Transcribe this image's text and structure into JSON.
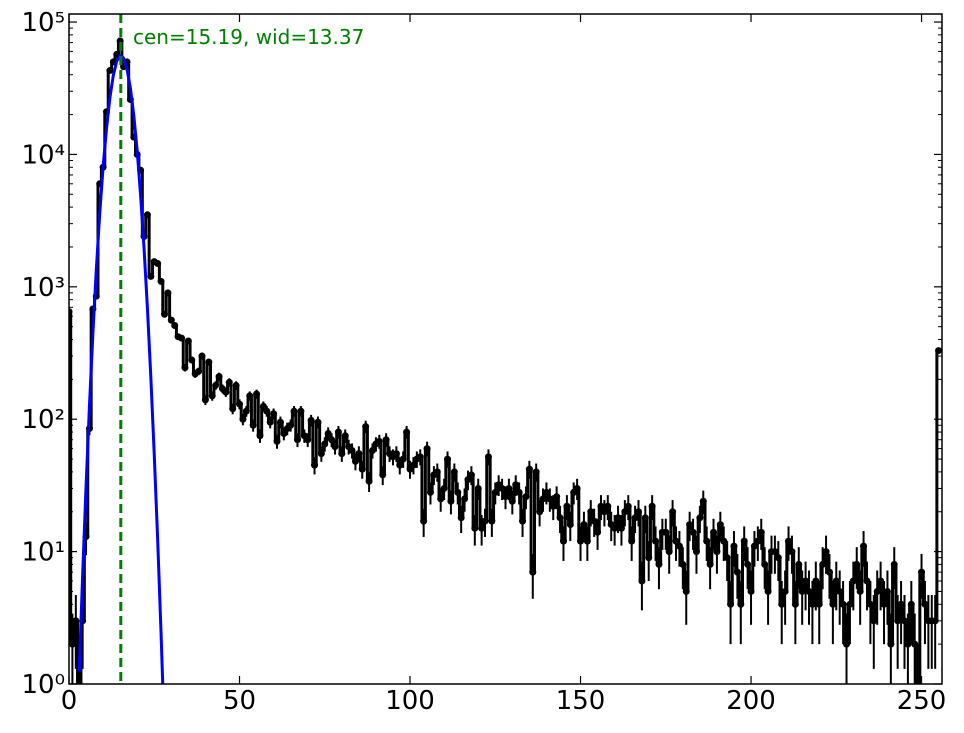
{
  "chart_data": {
    "type": "errorbar-step",
    "annotation": "cen=15.19, wid=13.37",
    "vline": {
      "x": 15.19,
      "color": "#008000"
    },
    "log_y": true,
    "xlim": [
      0,
      256
    ],
    "ylim": [
      1,
      115000
    ],
    "xticks": [
      0,
      50,
      100,
      150,
      200,
      250
    ],
    "yticks": [
      {
        "value": 1,
        "label": "10⁰"
      },
      {
        "value": 10,
        "label": "10¹"
      },
      {
        "value": 100,
        "label": "10²"
      },
      {
        "value": 1000,
        "label": "10³"
      },
      {
        "value": 10000,
        "label": "10⁴"
      },
      {
        "value": 100000,
        "label": "10⁵"
      }
    ],
    "yminorticks": [
      2,
      3,
      4,
      5,
      6,
      7,
      8,
      9,
      20,
      30,
      40,
      50,
      60,
      70,
      80,
      90,
      200,
      300,
      400,
      500,
      600,
      700,
      800,
      900,
      2000,
      3000,
      4000,
      5000,
      6000,
      7000,
      8000,
      9000,
      20000,
      30000,
      40000,
      50000,
      60000,
      70000,
      80000,
      90000
    ],
    "series": [
      {
        "color": "#000000",
        "x": [
          0,
          1,
          2,
          3,
          4,
          5,
          6,
          7,
          8,
          9,
          10,
          11,
          12,
          13,
          14,
          15,
          16,
          17,
          18,
          19,
          20,
          21,
          22,
          23,
          24,
          25,
          26,
          27,
          28,
          29,
          30,
          31,
          32,
          33,
          34,
          35,
          36,
          37,
          38,
          39,
          40,
          41,
          42,
          43,
          44,
          45,
          46,
          47,
          48,
          49,
          50,
          51,
          52,
          53,
          54,
          55,
          56,
          57,
          58,
          59,
          60,
          61,
          62,
          63,
          64,
          65,
          66,
          67,
          68,
          69,
          70,
          71,
          72,
          73,
          74,
          75,
          76,
          77,
          78,
          79,
          80,
          81,
          82,
          83,
          84,
          85,
          86,
          87,
          88,
          89,
          90,
          91,
          92,
          93,
          94,
          95,
          96,
          97,
          98,
          99,
          100,
          101,
          102,
          103,
          104,
          105,
          106,
          107,
          108,
          109,
          110,
          111,
          112,
          113,
          114,
          115,
          116,
          117,
          118,
          119,
          120,
          121,
          122,
          123,
          124,
          125,
          126,
          127,
          128,
          129,
          130,
          131,
          132,
          133,
          134,
          135,
          136,
          137,
          138,
          139,
          140,
          141,
          142,
          143,
          144,
          145,
          146,
          147,
          148,
          149,
          150,
          151,
          152,
          153,
          154,
          155,
          156,
          157,
          158,
          159,
          160,
          161,
          162,
          163,
          164,
          165,
          166,
          167,
          168,
          169,
          170,
          171,
          172,
          173,
          174,
          175,
          176,
          177,
          178,
          179,
          180,
          181,
          182,
          183,
          184,
          185,
          186,
          187,
          188,
          189,
          190,
          191,
          192,
          193,
          194,
          195,
          196,
          197,
          198,
          199,
          200,
          201,
          202,
          203,
          204,
          205,
          206,
          207,
          208,
          209,
          210,
          211,
          212,
          213,
          214,
          215,
          216,
          217,
          218,
          219,
          220,
          221,
          222,
          223,
          224,
          225,
          226,
          227,
          228,
          229,
          230,
          231,
          232,
          233,
          234,
          235,
          236,
          237,
          238,
          239,
          240,
          241,
          242,
          243,
          244,
          245,
          246,
          247,
          248,
          249,
          250,
          251,
          252,
          253,
          254,
          255
        ],
        "values": [
          650,
          2,
          3,
          1,
          3,
          13,
          85,
          680,
          850,
          6000,
          8000,
          21000,
          43000,
          50000,
          57000,
          72000,
          46000,
          50000,
          26000,
          13500,
          10000,
          7600,
          2400,
          3500,
          1200,
          1550,
          1500,
          1100,
          620,
          900,
          560,
          510,
          420,
          410,
          245,
          390,
          280,
          220,
          230,
          300,
          140,
          270,
          150,
          180,
          210,
          170,
          160,
          190,
          120,
          180,
          130,
          100,
          115,
          150,
          90,
          155,
          75,
          125,
          115,
          95,
          110,
          68,
          95,
          78,
          85,
          90,
          115,
          70,
          115,
          75,
          70,
          98,
          45,
          95,
          55,
          65,
          78,
          70,
          62,
          80,
          55,
          75,
          62,
          58,
          48,
          55,
          42,
          88,
          34,
          58,
          65,
          68,
          38,
          70,
          55,
          52,
          55,
          45,
          50,
          80,
          42,
          45,
          50,
          52,
          17,
          60,
          28,
          38,
          40,
          25,
          30,
          50,
          24,
          40,
          28,
          18,
          25,
          35,
          38,
          15,
          30,
          15,
          17,
          52,
          17,
          28,
          32,
          30,
          26,
          30,
          24,
          32,
          28,
          17,
          26,
          42,
          7,
          40,
          20,
          25,
          28,
          25,
          22,
          26,
          18,
          12,
          22,
          16,
          28,
          30,
          12,
          16,
          12,
          20,
          17,
          14,
          22,
          20,
          22,
          16,
          15,
          18,
          15,
          20,
          22,
          12,
          18,
          20,
          6,
          18,
          9,
          22,
          12,
          8,
          14,
          14,
          10,
          20,
          12,
          11,
          8,
          5,
          16,
          14,
          10,
          18,
          24,
          12,
          8,
          14,
          10,
          16,
          12,
          9,
          4,
          11,
          7,
          4,
          12,
          8,
          5,
          11,
          12,
          14,
          8,
          5,
          10,
          10,
          9,
          4,
          5,
          12,
          10,
          4,
          8,
          5,
          6,
          5,
          4,
          6,
          4,
          8,
          10,
          7,
          4,
          6,
          5,
          4,
          2,
          4,
          6,
          8,
          5,
          11,
          6,
          4,
          3,
          5,
          6,
          4,
          5,
          2,
          8,
          3,
          4,
          3,
          2,
          4,
          2,
          1,
          7,
          4,
          3,
          3,
          3,
          330
        ],
        "errors": [
          25.5,
          1.4,
          1.7,
          1,
          1.7,
          3.6,
          9.2,
          26.1,
          29.2,
          77.5,
          89.4,
          145,
          207,
          224,
          239,
          268,
          214,
          224,
          161,
          116,
          100,
          87.2,
          49,
          59.2,
          34.6,
          39.4,
          38.7,
          33.2,
          24.9,
          30,
          23.7,
          22.6,
          20.5,
          20.2,
          15.7,
          19.7,
          16.7,
          14.8,
          15.2,
          17.3,
          11.8,
          16.4,
          12.2,
          13.4,
          14.5,
          13,
          12.6,
          13.8,
          11,
          13.4,
          11.4,
          10,
          10.7,
          12.2,
          9.5,
          12.4,
          8.7,
          11.2,
          10.7,
          9.7,
          10.5,
          8.2,
          9.7,
          8.8,
          9.2,
          9.5,
          10.7,
          8.4,
          10.7,
          8.7,
          8.4,
          9.9,
          6.7,
          9.7,
          7.4,
          8.1,
          8.8,
          8.4,
          7.9,
          8.9,
          7.4,
          8.7,
          7.9,
          7.6,
          6.9,
          7.4,
          6.5,
          9.4,
          5.8,
          7.6,
          8.1,
          8.2,
          6.2,
          8.4,
          7.4,
          7.2,
          7.4,
          6.7,
          7.1,
          8.9,
          6.5,
          6.7,
          7.1,
          7.2,
          4.1,
          7.7,
          5.3,
          6.2,
          6.3,
          5,
          5.5,
          7.1,
          4.9,
          6.3,
          5.3,
          4.2,
          5,
          5.9,
          6.2,
          3.9,
          5.5,
          3.9,
          4.1,
          7.2,
          4.1,
          5.3,
          5.7,
          5.5,
          5.1,
          5.5,
          4.9,
          5.7,
          5.3,
          4.1,
          5.1,
          6.5,
          2.6,
          6.3,
          4.5,
          5,
          5.3,
          5,
          4.7,
          5.1,
          4.2,
          3.5,
          4.7,
          4,
          5.3,
          5.5,
          3.5,
          4,
          3.5,
          4.5,
          4.1,
          3.7,
          4.7,
          4.5,
          4.7,
          4,
          3.9,
          4.2,
          3.9,
          4.5,
          4.7,
          3.5,
          4.2,
          4.5,
          2.4,
          4.2,
          3,
          4.7,
          3.5,
          2.8,
          3.7,
          3.7,
          3.2,
          4.5,
          3.5,
          3.3,
          2.8,
          2.2,
          4,
          3.7,
          3.2,
          4.2,
          4.9,
          3.5,
          2.8,
          3.7,
          3.2,
          4,
          3.5,
          3,
          2,
          3.3,
          2.6,
          2,
          3.5,
          2.8,
          2.2,
          3.3,
          3.5,
          3.7,
          2.8,
          2.2,
          3.2,
          3.2,
          3,
          2,
          2.2,
          3.5,
          3.2,
          2,
          2.8,
          2.2,
          2.4,
          2.2,
          2,
          2.4,
          2,
          2.8,
          3.2,
          2.6,
          2,
          2.4,
          2.2,
          2,
          1.4,
          2,
          2.4,
          2.8,
          2.2,
          3.3,
          2.4,
          2,
          1.7,
          2.2,
          2.4,
          2,
          2.2,
          1.4,
          2.8,
          1.7,
          2,
          1.7,
          1.4,
          2,
          1.4,
          1,
          2.6,
          2,
          1.7,
          1.7,
          1.7,
          18.2
        ]
      },
      {
        "color": "#0000ff",
        "x": [
          3,
          4,
          5,
          6,
          7,
          8,
          9,
          10,
          11,
          12,
          13,
          14,
          15,
          15.19,
          16,
          17,
          18,
          19,
          20,
          21,
          22,
          23,
          24,
          25,
          26,
          27,
          28
        ],
        "values": [
          1.24,
          6.7,
          31,
          127,
          442,
          1343,
          3530,
          8050,
          15700,
          26900,
          39600,
          50600,
          55850,
          56000,
          53400,
          44200,
          31700,
          19700,
          10600,
          4880,
          1965,
          688,
          207,
          54,
          12.3,
          2.4,
          0.4
        ]
      }
    ]
  }
}
